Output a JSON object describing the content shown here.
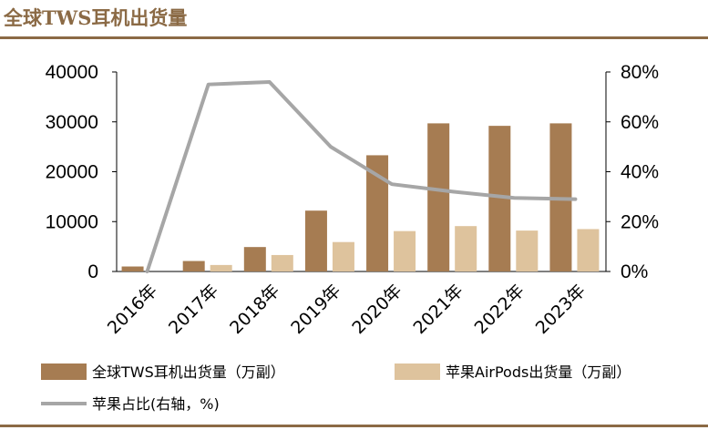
{
  "header": {
    "title": "全球TWS耳机出货量",
    "accent_color": "#8B6A45"
  },
  "chart_data": {
    "type": "bar+line",
    "title": "全球TWS耳机出货量",
    "categories": [
      "2016年",
      "2017年",
      "2018年",
      "2019年",
      "2020年",
      "2021年",
      "2022年",
      "2023年"
    ],
    "series": [
      {
        "name": "全球TWS耳机出货量（万副）",
        "type": "bar",
        "axis": "left",
        "color": "#A67C52",
        "values": [
          1000,
          2100,
          4900,
          12200,
          23300,
          29700,
          29200,
          29700
        ]
      },
      {
        "name": "苹果AirPods出货量（万副）",
        "type": "bar",
        "axis": "left",
        "color": "#DEC39D",
        "values": [
          0,
          1300,
          3300,
          5900,
          8100,
          9100,
          8200,
          8500
        ]
      },
      {
        "name": "苹果占比(右轴，%)",
        "type": "line",
        "axis": "right",
        "color": "#A6A6A6",
        "values": [
          0,
          75,
          76,
          50,
          35,
          32,
          29.5,
          29
        ]
      }
    ],
    "left_axis": {
      "min": 0,
      "max": 40000,
      "ticks": [
        0,
        10000,
        20000,
        30000,
        40000
      ],
      "tick_labels": [
        "0",
        "10000",
        "20000",
        "30000",
        "40000"
      ]
    },
    "right_axis": {
      "min": 0,
      "max": 80,
      "ticks": [
        0,
        20,
        40,
        60,
        80
      ],
      "tick_labels": [
        "0%",
        "20%",
        "40%",
        "60%",
        "80%"
      ]
    },
    "grid": false,
    "legend_position": "bottom"
  }
}
